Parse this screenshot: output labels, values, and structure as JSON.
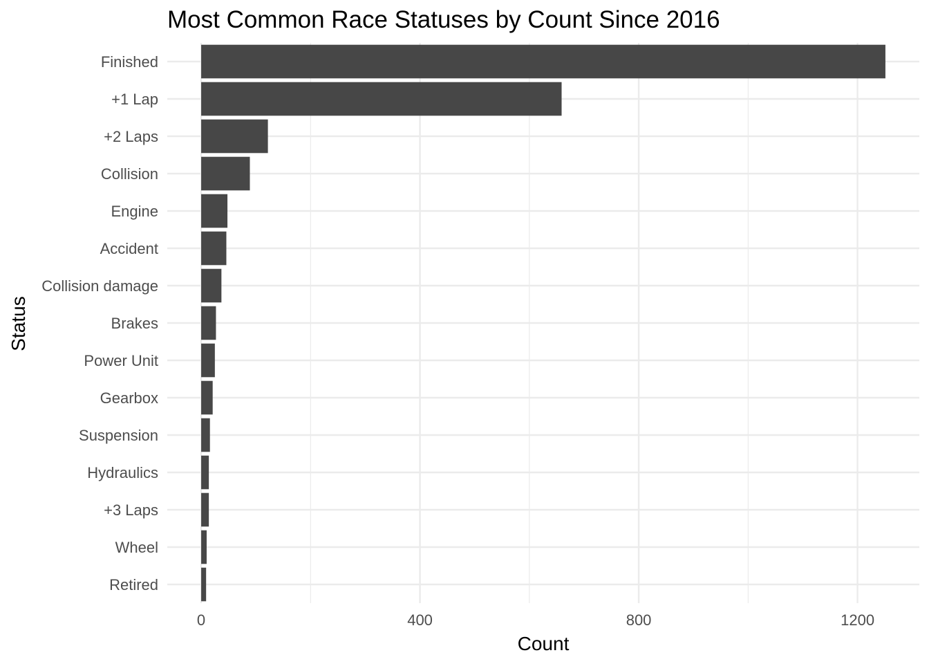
{
  "chart_data": {
    "type": "bar",
    "orientation": "horizontal",
    "title": "Most Common Race Statuses by Count Since 2016",
    "xlabel": "Count",
    "ylabel": "Status",
    "categories": [
      "Finished",
      "+1 Lap",
      "+2 Laps",
      "Collision",
      "Engine",
      "Accident",
      "Collision damage",
      "Brakes",
      "Power Unit",
      "Gearbox",
      "Suspension",
      "Hydraulics",
      "+3 Laps",
      "Wheel",
      "Retired"
    ],
    "values": [
      1251,
      659,
      122,
      89,
      48,
      46,
      37,
      27,
      25,
      21,
      16,
      14,
      14,
      10,
      9
    ],
    "xlim": [
      -62,
      1313
    ],
    "x_ticks": [
      0,
      400,
      800,
      1200
    ],
    "grid": true,
    "bar_color": "#474747",
    "grid_color": "#ebebeb"
  }
}
